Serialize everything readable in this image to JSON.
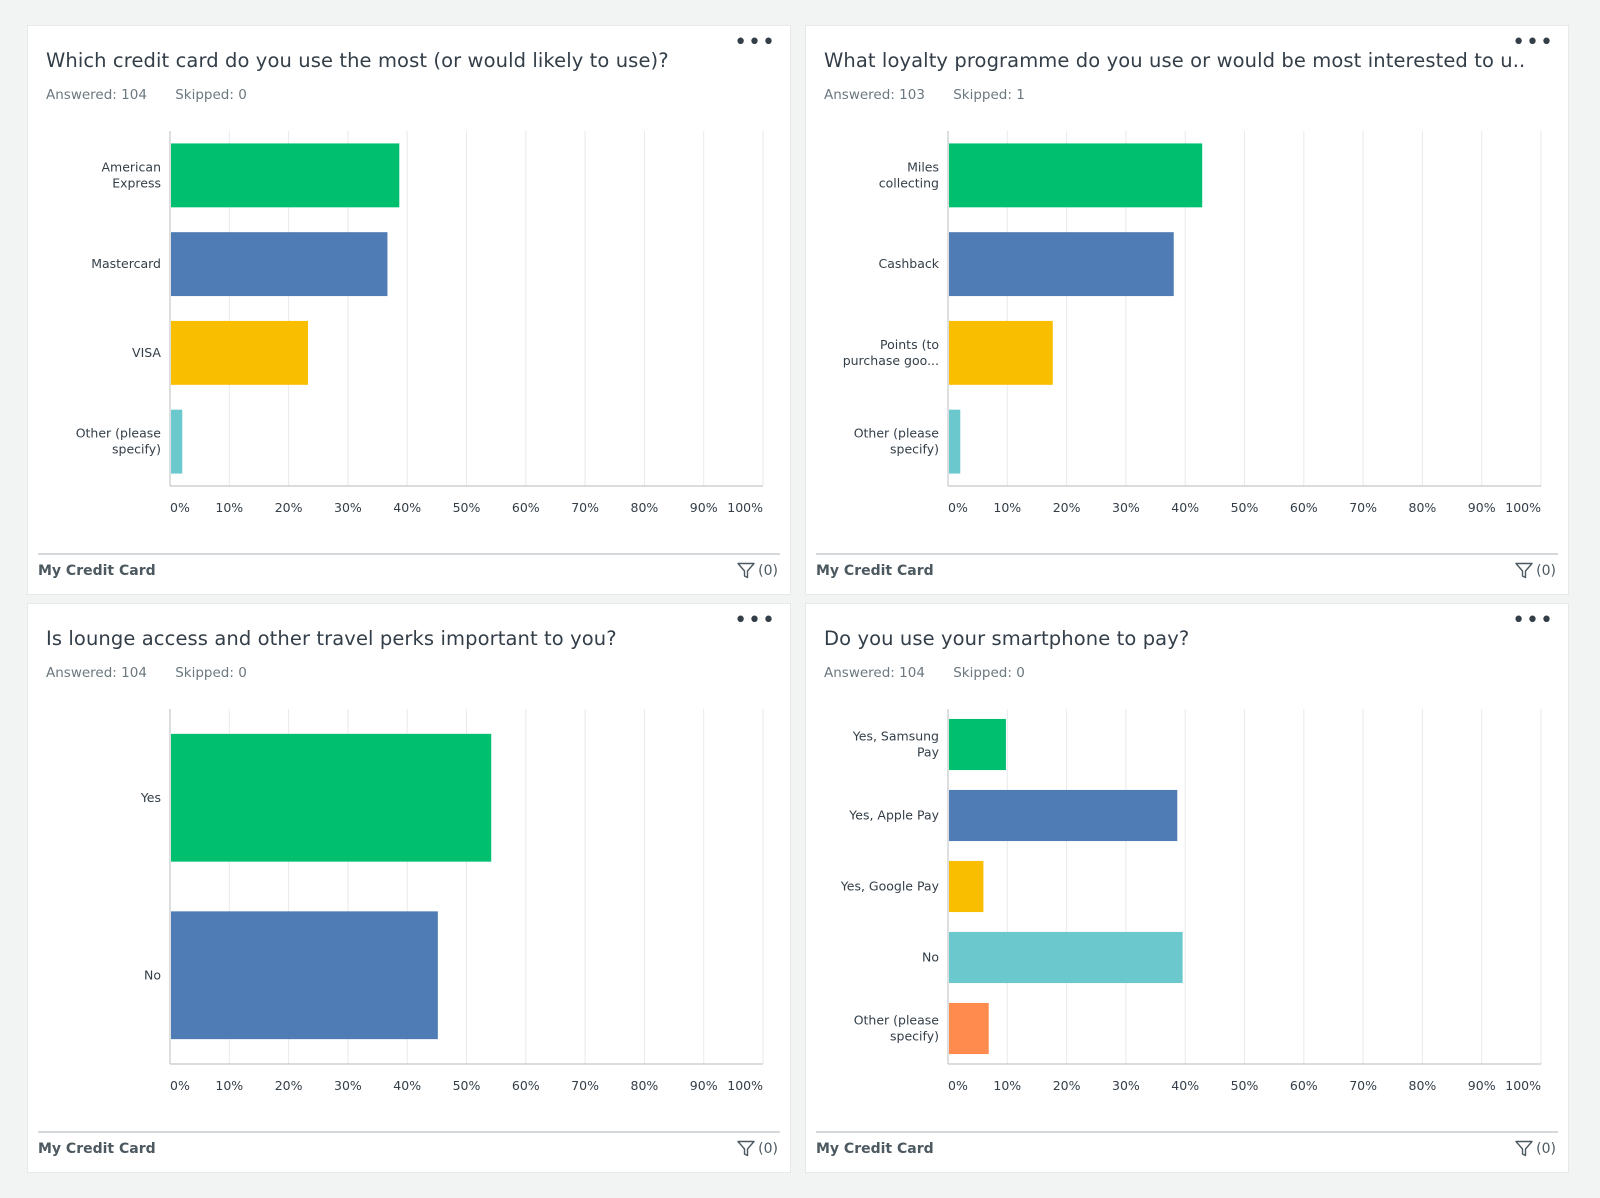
{
  "colors": {
    "green": "#00bf6f",
    "blue": "#507cb6",
    "yellow": "#f9be00",
    "teal": "#6bc8cd",
    "orange": "#ff8b4f"
  },
  "icons": {
    "more": "more-dots-icon",
    "filter": "filter-icon"
  },
  "cards": [
    {
      "title": "Which credit card do you use the most (or would likely to use)?",
      "answered": "Answered: 104",
      "skipped": "Skipped: 0",
      "footer_name": "My Credit Card",
      "filter_label": "(0)",
      "more_label": "•••"
    },
    {
      "title": "What loyalty programme do you use or would be most interested to u...",
      "answered": "Answered: 103",
      "skipped": "Skipped: 1",
      "footer_name": "My Credit Card",
      "filter_label": "(0)",
      "more_label": "•••"
    },
    {
      "title": "Is lounge access and other travel perks important to you?",
      "answered": "Answered: 104",
      "skipped": "Skipped: 0",
      "footer_name": "My Credit Card",
      "filter_label": "(0)",
      "more_label": "•••"
    },
    {
      "title": "Do you use your smartphone to pay?",
      "answered": "Answered: 104",
      "skipped": "Skipped: 0",
      "footer_name": "My Credit Card",
      "filter_label": "(0)",
      "more_label": "•••"
    }
  ],
  "chart_data": [
    {
      "type": "bar",
      "orientation": "horizontal",
      "title": "Which credit card do you use the most (or would likely to use)?",
      "categories": [
        [
          "American",
          "Express"
        ],
        [
          "Mastercard"
        ],
        [
          "VISA"
        ],
        [
          "Other (please",
          "specify)"
        ]
      ],
      "values": [
        38.5,
        36.5,
        23.1,
        1.9
      ],
      "bar_colors": [
        "green",
        "blue",
        "yellow",
        "teal"
      ],
      "x_ticks": [
        "0%",
        "10%",
        "20%",
        "30%",
        "40%",
        "50%",
        "60%",
        "70%",
        "80%",
        "90%",
        "100%"
      ],
      "xlim": [
        0,
        100
      ],
      "grid": true
    },
    {
      "type": "bar",
      "orientation": "horizontal",
      "title": "What loyalty programme do you use or would be most interested to u...",
      "categories": [
        [
          "Miles",
          "collecting"
        ],
        [
          "Cashback"
        ],
        [
          "Points (to",
          "purchase goo..."
        ],
        [
          "Other (please",
          "specify)"
        ]
      ],
      "values": [
        42.7,
        37.9,
        17.5,
        1.9
      ],
      "bar_colors": [
        "green",
        "blue",
        "yellow",
        "teal"
      ],
      "x_ticks": [
        "0%",
        "10%",
        "20%",
        "30%",
        "40%",
        "50%",
        "60%",
        "70%",
        "80%",
        "90%",
        "100%"
      ],
      "xlim": [
        0,
        100
      ],
      "grid": true
    },
    {
      "type": "bar",
      "orientation": "horizontal",
      "title": "Is lounge access and other travel perks important to you?",
      "categories": [
        [
          "Yes"
        ],
        [
          "No"
        ]
      ],
      "values": [
        54.0,
        45.0
      ],
      "bar_colors": [
        "green",
        "blue"
      ],
      "x_ticks": [
        "0%",
        "10%",
        "20%",
        "30%",
        "40%",
        "50%",
        "60%",
        "70%",
        "80%",
        "90%",
        "100%"
      ],
      "xlim": [
        0,
        100
      ],
      "grid": true
    },
    {
      "type": "bar",
      "orientation": "horizontal",
      "title": "Do you use your smartphone to pay?",
      "categories": [
        [
          "Yes, Samsung",
          "Pay"
        ],
        [
          "Yes, Apple Pay"
        ],
        [
          "Yes, Google Pay"
        ],
        [
          "No"
        ],
        [
          "Other (please",
          "specify)"
        ]
      ],
      "values": [
        9.6,
        38.5,
        5.8,
        39.4,
        6.7
      ],
      "bar_colors": [
        "green",
        "blue",
        "yellow",
        "teal",
        "orange"
      ],
      "x_ticks": [
        "0%",
        "10%",
        "20%",
        "30%",
        "40%",
        "50%",
        "60%",
        "70%",
        "80%",
        "90%",
        "100%"
      ],
      "xlim": [
        0,
        100
      ],
      "grid": true
    }
  ]
}
